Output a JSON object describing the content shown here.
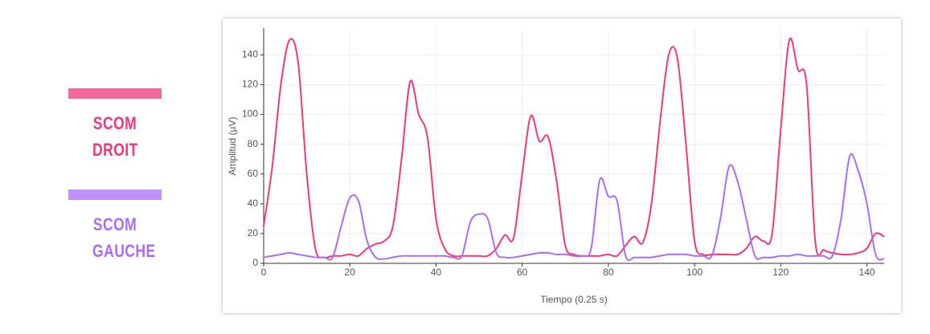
{
  "chart_data": {
    "type": "line",
    "x_label": "Tiempo (0.25 s)",
    "y_label": "Amplitud (µV)",
    "x": [
      0,
      2,
      4,
      6,
      8,
      10,
      12,
      14,
      16,
      18,
      20,
      22,
      24,
      26,
      28,
      30,
      32,
      34,
      36,
      38,
      40,
      42,
      44,
      46,
      48,
      50,
      52,
      54,
      56,
      58,
      60,
      62,
      64,
      66,
      68,
      70,
      72,
      74,
      76,
      78,
      80,
      82,
      84,
      86,
      88,
      90,
      92,
      94,
      96,
      98,
      100,
      102,
      104,
      106,
      108,
      110,
      112,
      114,
      116,
      118,
      120,
      122,
      124,
      126,
      128,
      130,
      132,
      134,
      136,
      138,
      140,
      142,
      144
    ],
    "series": [
      {
        "name": "SCOM DROIT",
        "color": "#f0387a",
        "values": [
          25,
          65,
          120,
          150,
          135,
          60,
          10,
          4,
          5,
          5,
          6,
          5,
          10,
          13,
          15,
          25,
          70,
          122,
          100,
          85,
          30,
          10,
          5,
          5,
          5,
          5,
          5,
          10,
          19,
          17,
          60,
          99,
          82,
          85,
          55,
          12,
          6,
          5,
          5,
          5,
          6,
          5,
          12,
          18,
          14,
          40,
          95,
          140,
          138,
          80,
          15,
          6,
          6,
          6,
          6,
          6,
          10,
          18,
          15,
          20,
          90,
          150,
          130,
          120,
          15,
          9,
          7,
          6,
          6,
          7,
          10,
          20,
          18
        ]
      },
      {
        "name": "SCOM GAUCHE",
        "color": "#a96ef5",
        "values": [
          4,
          5,
          6,
          7,
          6,
          5,
          4,
          4,
          4,
          25,
          44,
          42,
          15,
          4,
          3,
          4,
          5,
          5,
          5,
          5,
          5,
          5,
          4,
          5,
          28,
          33,
          30,
          7,
          4,
          4,
          5,
          6,
          7,
          7,
          6,
          6,
          5,
          5,
          10,
          56,
          45,
          42,
          5,
          4,
          4,
          4,
          5,
          6,
          6,
          6,
          5,
          5,
          5,
          30,
          65,
          55,
          30,
          5,
          4,
          4,
          5,
          5,
          6,
          5,
          5,
          5,
          5,
          30,
          72,
          62,
          40,
          6,
          3
        ]
      }
    ],
    "xlim": [
      0,
      144
    ],
    "xticks": [
      0,
      20,
      40,
      60,
      80,
      100,
      120,
      140
    ],
    "ylim": [
      0,
      158
    ],
    "yticks": [
      0,
      20,
      40,
      60,
      80,
      100,
      120,
      140
    ],
    "grid": true
  }
}
